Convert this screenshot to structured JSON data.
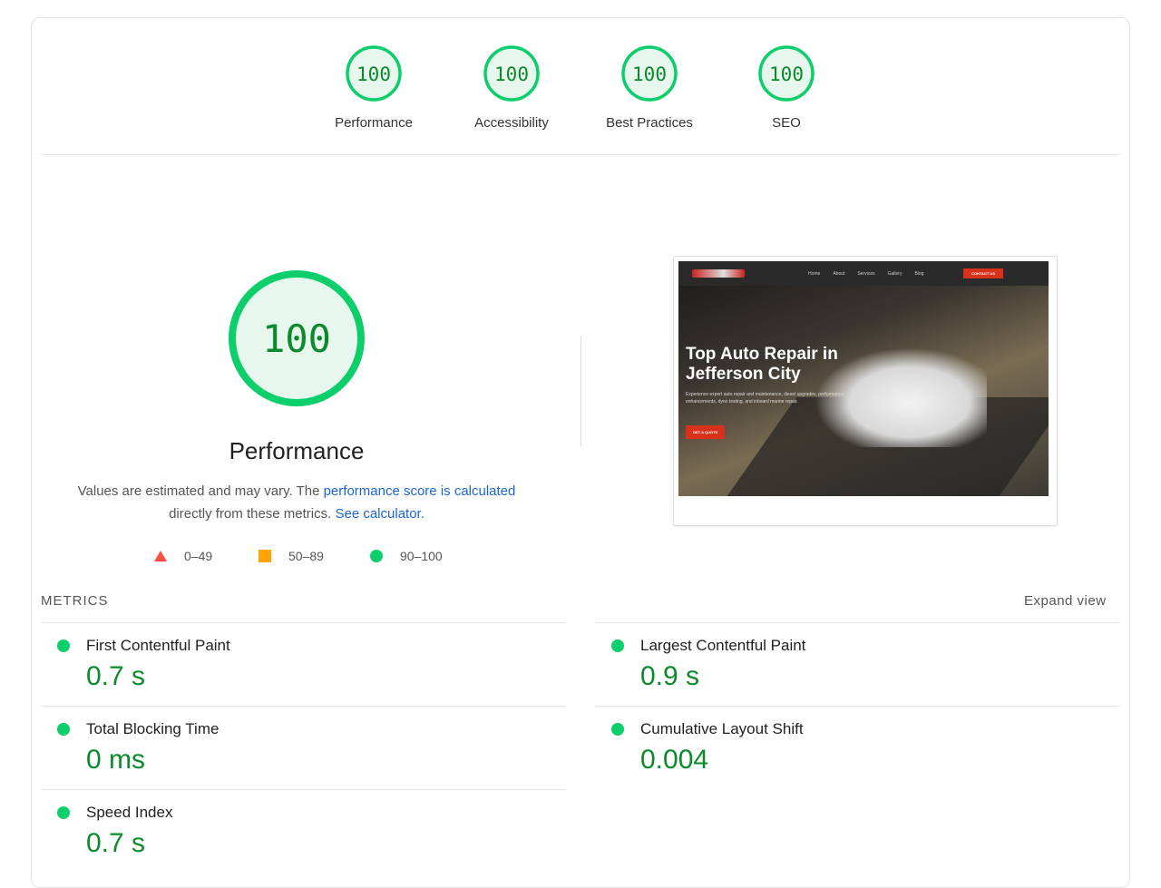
{
  "gauges": [
    {
      "label": "Performance",
      "score": "100"
    },
    {
      "label": "Accessibility",
      "score": "100"
    },
    {
      "label": "Best Practices",
      "score": "100"
    },
    {
      "label": "SEO",
      "score": "100"
    }
  ],
  "performance": {
    "score": "100",
    "score_fraction": 1.0,
    "title": "Performance",
    "desc_prefix": "Values are estimated and may vary. The ",
    "desc_link": "performance score is calculated",
    "desc_mid": " directly from these metrics. ",
    "calc_link": "See calculator.",
    "legend": [
      {
        "icon": "red-triangle-icon",
        "label": "0–49"
      },
      {
        "icon": "orange-square-icon",
        "label": "50–89"
      },
      {
        "icon": "green-circle-icon",
        "label": "90–100"
      }
    ]
  },
  "screenshot": {
    "nav": [
      "Home",
      "About",
      "Services",
      "Gallery",
      "Blog"
    ],
    "contact": "CONTACT US",
    "headline": "Top Auto Repair in Jefferson City",
    "subtext": "Experience expert auto repair and maintenance, diesel upgrades, performance enhancements, dyno testing, and inboard marine repair.",
    "cta": "GET A QUOTE"
  },
  "metrics": {
    "heading": "METRICS",
    "expand": "Expand view",
    "items": [
      {
        "title": "First Contentful Paint",
        "value": "0.7 s"
      },
      {
        "title": "Largest Contentful Paint",
        "value": "0.9 s"
      },
      {
        "title": "Total Blocking Time",
        "value": "0 ms"
      },
      {
        "title": "Cumulative Layout Shift",
        "value": "0.004"
      },
      {
        "title": "Speed Index",
        "value": "0.7 s"
      }
    ]
  },
  "colors": {
    "pass": "#0cce6b",
    "pass_text": "#0a8a2a",
    "average": "#ffa400",
    "fail": "#ff4e42",
    "link": "#1a66d6"
  }
}
